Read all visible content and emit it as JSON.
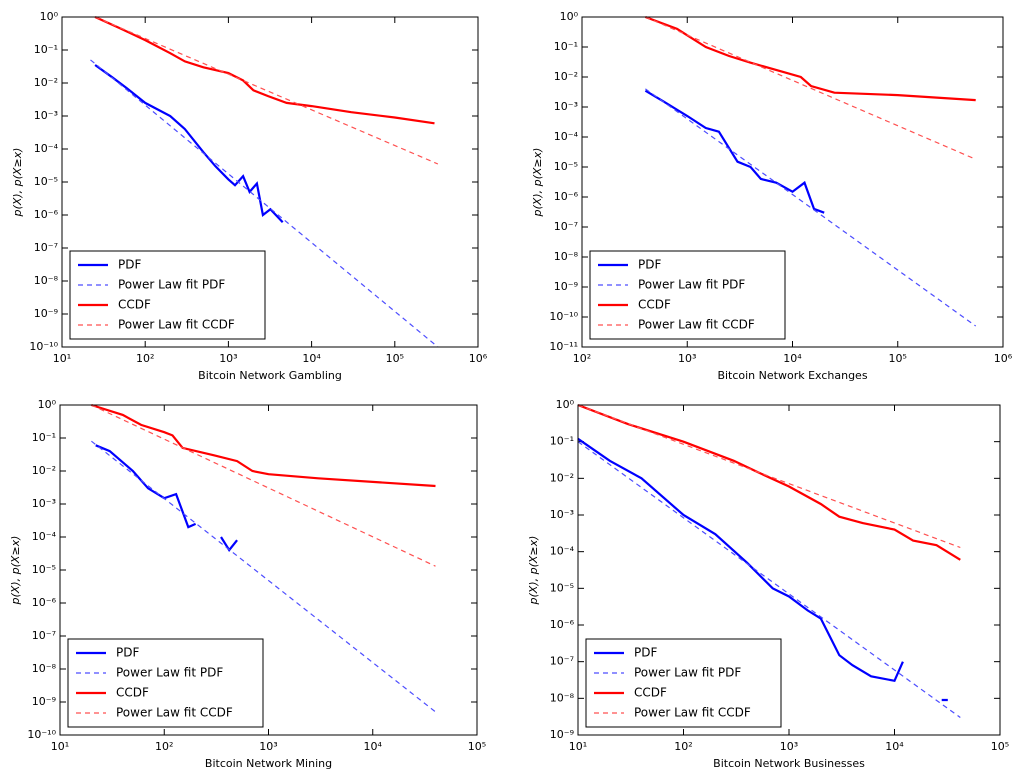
{
  "chart_data": [
    {
      "type": "line",
      "xlabel": "Bitcoin Network Gambling",
      "ylabel": "p(X), p(X≥x)",
      "log_x": true,
      "log_y": true,
      "legend": "lower left",
      "xlim": [
        10,
        1000000
      ],
      "ylim": [
        1e-10,
        1
      ],
      "xticks": [
        {
          "value": 10,
          "label": "10¹"
        },
        {
          "value": 100,
          "label": "10²"
        },
        {
          "value": 1000,
          "label": "10³"
        },
        {
          "value": 10000,
          "label": "10⁴"
        },
        {
          "value": 100000,
          "label": "10⁵"
        },
        {
          "value": 1000000,
          "label": "10⁶"
        }
      ],
      "yticks": [
        {
          "value": 1e-10,
          "label": "10⁻¹⁰"
        },
        {
          "value": 1e-09,
          "label": "10⁻⁹"
        },
        {
          "value": 1e-08,
          "label": "10⁻⁸"
        },
        {
          "value": 1e-07,
          "label": "10⁻⁷"
        },
        {
          "value": 1e-06,
          "label": "10⁻⁶"
        },
        {
          "value": 1e-05,
          "label": "10⁻⁵"
        },
        {
          "value": 0.0001,
          "label": "10⁻⁴"
        },
        {
          "value": 0.001,
          "label": "10⁻³"
        },
        {
          "value": 0.01,
          "label": "10⁻²"
        },
        {
          "value": 0.1,
          "label": "10⁻¹"
        },
        {
          "value": 1,
          "label": "10⁰"
        }
      ],
      "series": [
        {
          "name": "PDF",
          "color": "#0000ff",
          "style": "solid",
          "x": [
            25,
            40,
            60,
            100,
            200,
            300,
            500,
            700,
            1000,
            1200,
            1500,
            1800,
            2200,
            2600,
            3200,
            4500
          ],
          "values": [
            0.035,
            0.015,
            0.007,
            0.0025,
            0.001,
            0.0004,
            8e-05,
            3e-05,
            1.2e-05,
            8e-06,
            1.5e-05,
            5e-06,
            9e-06,
            1e-06,
            1.5e-06,
            6e-07
          ]
        },
        {
          "name": "Power Law fit PDF",
          "color": "#4d4dff",
          "style": "dashed",
          "x": [
            22,
            330000
          ],
          "values": [
            0.05,
            1e-10
          ]
        },
        {
          "name": "CCDF",
          "color": "#ff0000",
          "style": "solid",
          "x": [
            25,
            50,
            100,
            200,
            300,
            500,
            1000,
            1500,
            2000,
            3000,
            5000,
            10000,
            30000,
            100000,
            300000
          ],
          "values": [
            1,
            0.45,
            0.2,
            0.08,
            0.045,
            0.03,
            0.02,
            0.012,
            0.006,
            0.004,
            0.0025,
            0.002,
            0.0013,
            0.0009,
            0.0006
          ]
        },
        {
          "name": "Power Law fit CCDF",
          "color": "#ff5050",
          "style": "dashed",
          "x": [
            25,
            330000
          ],
          "values": [
            1,
            3.5e-05
          ]
        }
      ]
    },
    {
      "type": "line",
      "xlabel": "Bitcoin Network Exchanges",
      "ylabel": "p(X), p(X≥x)",
      "log_x": true,
      "log_y": true,
      "legend": "lower left",
      "xlim": [
        100,
        1000000
      ],
      "ylim": [
        1e-11,
        1
      ],
      "xticks": [
        {
          "value": 100,
          "label": "10²"
        },
        {
          "value": 1000,
          "label": "10³"
        },
        {
          "value": 10000,
          "label": "10⁴"
        },
        {
          "value": 100000,
          "label": "10⁵"
        },
        {
          "value": 1000000,
          "label": "10⁶"
        }
      ],
      "yticks": [
        {
          "value": 1e-11,
          "label": "10⁻¹¹"
        },
        {
          "value": 1e-10,
          "label": "10⁻¹⁰"
        },
        {
          "value": 1e-09,
          "label": "10⁻⁹"
        },
        {
          "value": 1e-08,
          "label": "10⁻⁸"
        },
        {
          "value": 1e-07,
          "label": "10⁻⁷"
        },
        {
          "value": 1e-06,
          "label": "10⁻⁶"
        },
        {
          "value": 1e-05,
          "label": "10⁻⁵"
        },
        {
          "value": 0.0001,
          "label": "10⁻⁴"
        },
        {
          "value": 0.001,
          "label": "10⁻³"
        },
        {
          "value": 0.01,
          "label": "10⁻²"
        },
        {
          "value": 0.1,
          "label": "10⁻¹"
        },
        {
          "value": 1,
          "label": "10⁰"
        }
      ],
      "series": [
        {
          "name": "PDF",
          "color": "#0000ff",
          "style": "solid",
          "x": [
            400,
            600,
            1000,
            1500,
            2000,
            3000,
            4000,
            5000,
            7000,
            10000,
            13000,
            16000,
            20000
          ],
          "values": [
            0.0035,
            0.0015,
            0.0005,
            0.0002,
            0.00015,
            1.5e-05,
            1e-05,
            4e-06,
            3e-06,
            1.5e-06,
            3e-06,
            4e-07,
            3e-07
          ]
        },
        {
          "name": "Power Law fit PDF",
          "color": "#4d4dff",
          "style": "dashed",
          "x": [
            400,
            550000
          ],
          "values": [
            0.004,
            5e-11
          ]
        },
        {
          "name": "CCDF",
          "color": "#ff0000",
          "style": "solid",
          "x": [
            400,
            800,
            1500,
            2500,
            4000,
            8000,
            12000,
            15000,
            25000,
            100000,
            550000
          ],
          "values": [
            1,
            0.4,
            0.1,
            0.05,
            0.03,
            0.015,
            0.01,
            0.005,
            0.003,
            0.0025,
            0.0017
          ]
        },
        {
          "name": "Power Law fit CCDF",
          "color": "#ff5050",
          "style": "dashed",
          "x": [
            400,
            550000
          ],
          "values": [
            1,
            1.8e-05
          ]
        }
      ]
    },
    {
      "type": "line",
      "xlabel": "Bitcoin Network Mining",
      "ylabel": "p(X), p(X≥x)",
      "log_x": true,
      "log_y": true,
      "legend": "lower left",
      "xlim": [
        10,
        100000
      ],
      "ylim": [
        1e-10,
        1
      ],
      "xticks": [
        {
          "value": 10,
          "label": "10¹"
        },
        {
          "value": 100,
          "label": "10²"
        },
        {
          "value": 1000,
          "label": "10³"
        },
        {
          "value": 10000,
          "label": "10⁴"
        },
        {
          "value": 100000,
          "label": "10⁵"
        }
      ],
      "yticks": [
        {
          "value": 1e-10,
          "label": "10⁻¹⁰"
        },
        {
          "value": 1e-09,
          "label": "10⁻⁹"
        },
        {
          "value": 1e-08,
          "label": "10⁻⁸"
        },
        {
          "value": 1e-07,
          "label": "10⁻⁷"
        },
        {
          "value": 1e-06,
          "label": "10⁻⁶"
        },
        {
          "value": 1e-05,
          "label": "10⁻⁵"
        },
        {
          "value": 0.0001,
          "label": "10⁻⁴"
        },
        {
          "value": 0.001,
          "label": "10⁻³"
        },
        {
          "value": 0.01,
          "label": "10⁻²"
        },
        {
          "value": 0.1,
          "label": "10⁻¹"
        },
        {
          "value": 1,
          "label": "10⁰"
        }
      ],
      "series": [
        {
          "name": "PDF",
          "color": "#0000ff",
          "style": "solid",
          "x": [
            22,
            30,
            50,
            70,
            100,
            130,
            170,
            200,
            null,
            350,
            420,
            500
          ],
          "values": [
            0.06,
            0.04,
            0.01,
            0.003,
            0.0015,
            0.002,
            0.0002,
            0.00025,
            null,
            0.0001,
            4e-05,
            8e-05
          ]
        },
        {
          "name": "Power Law fit PDF",
          "color": "#4d4dff",
          "style": "dashed",
          "x": [
            20,
            40000
          ],
          "values": [
            0.08,
            5e-10
          ]
        },
        {
          "name": "CCDF",
          "color": "#ff0000",
          "style": "solid",
          "x": [
            20,
            40,
            60,
            100,
            120,
            150,
            300,
            500,
            700,
            1000,
            3000,
            40000
          ],
          "values": [
            1,
            0.5,
            0.25,
            0.15,
            0.12,
            0.05,
            0.03,
            0.02,
            0.01,
            0.008,
            0.006,
            0.0035
          ]
        },
        {
          "name": "Power Law fit CCDF",
          "color": "#ff5050",
          "style": "dashed",
          "x": [
            20,
            40000
          ],
          "values": [
            1,
            1.3e-05
          ]
        }
      ]
    },
    {
      "type": "line",
      "xlabel": "Bitcoin Network Businesses",
      "ylabel": "p(X), p(X≥x)",
      "log_x": true,
      "log_y": true,
      "legend": "lower left",
      "xlim": [
        10,
        100000
      ],
      "ylim": [
        1e-09,
        1
      ],
      "xticks": [
        {
          "value": 10,
          "label": "10¹"
        },
        {
          "value": 100,
          "label": "10²"
        },
        {
          "value": 1000,
          "label": "10³"
        },
        {
          "value": 10000,
          "label": "10⁴"
        },
        {
          "value": 100000,
          "label": "10⁵"
        }
      ],
      "yticks": [
        {
          "value": 1e-09,
          "label": "10⁻⁹"
        },
        {
          "value": 1e-08,
          "label": "10⁻⁸"
        },
        {
          "value": 1e-07,
          "label": "10⁻⁷"
        },
        {
          "value": 1e-06,
          "label": "10⁻⁶"
        },
        {
          "value": 1e-05,
          "label": "10⁻⁵"
        },
        {
          "value": 0.0001,
          "label": "10⁻⁴"
        },
        {
          "value": 0.001,
          "label": "10⁻³"
        },
        {
          "value": 0.01,
          "label": "10⁻²"
        },
        {
          "value": 0.1,
          "label": "10⁻¹"
        },
        {
          "value": 1,
          "label": "10⁰"
        }
      ],
      "series": [
        {
          "name": "PDF",
          "color": "#0000ff",
          "style": "solid",
          "x": [
            10,
            20,
            40,
            100,
            200,
            400,
            700,
            1000,
            1500,
            2000,
            3000,
            4000,
            6000,
            10000,
            12000,
            null,
            28000,
            32000
          ],
          "values": [
            0.12,
            0.03,
            0.01,
            0.001,
            0.0003,
            5e-05,
            1e-05,
            6e-06,
            2.5e-06,
            1.5e-06,
            1.5e-07,
            8e-08,
            4e-08,
            3e-08,
            1e-07,
            null,
            9e-09,
            9e-09
          ]
        },
        {
          "name": "Power Law fit PDF",
          "color": "#4d4dff",
          "style": "dashed",
          "x": [
            10,
            42000
          ],
          "values": [
            0.1,
            3e-09
          ]
        },
        {
          "name": "CCDF",
          "color": "#ff0000",
          "style": "solid",
          "x": [
            10,
            30,
            100,
            300,
            500,
            1000,
            2000,
            3000,
            5000,
            10000,
            15000,
            25000,
            42000
          ],
          "values": [
            1,
            0.3,
            0.1,
            0.03,
            0.015,
            0.006,
            0.002,
            0.0009,
            0.0006,
            0.0004,
            0.0002,
            0.00015,
            6e-05
          ]
        },
        {
          "name": "Power Law fit CCDF",
          "color": "#ff5050",
          "style": "dashed",
          "x": [
            10,
            42000
          ],
          "values": [
            1,
            0.00013
          ]
        }
      ]
    }
  ]
}
